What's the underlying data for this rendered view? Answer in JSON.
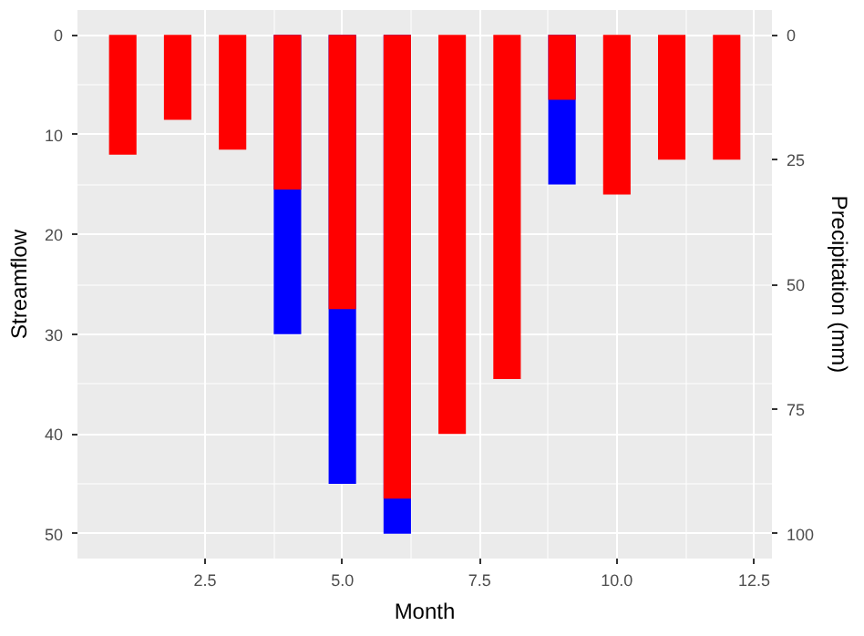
{
  "chart_data": {
    "type": "bar",
    "xlabel": "Month",
    "ylabel": "Streamflow",
    "y2label": "Precipitation (mm)",
    "x": [
      1,
      2,
      3,
      4,
      5,
      6,
      7,
      8,
      9,
      10,
      11,
      12
    ],
    "series": [
      {
        "color": "#0000ff",
        "values": [
          null,
          null,
          null,
          30,
          45,
          50,
          null,
          null,
          15,
          null,
          null,
          null
        ]
      },
      {
        "color": "#ff0000",
        "axis": "y2",
        "values": [
          24,
          17,
          23,
          31,
          55,
          93,
          80,
          69,
          13,
          32,
          25,
          25
        ]
      }
    ],
    "xlim": [
      0.175,
      12.825
    ],
    "xticks": [
      2.5,
      {
        "value": 5,
        "label": "5.0"
      },
      7.5,
      {
        "value": 10,
        "label": "10.0"
      },
      12.5
    ],
    "ylim": [
      52.5,
      -2.5
    ],
    "yticks": [
      0,
      10,
      20,
      30,
      40,
      50
    ],
    "y2lim": [
      105,
      -5
    ],
    "y2ticks": [
      0,
      25,
      50,
      75,
      100
    ],
    "grid": true
  }
}
